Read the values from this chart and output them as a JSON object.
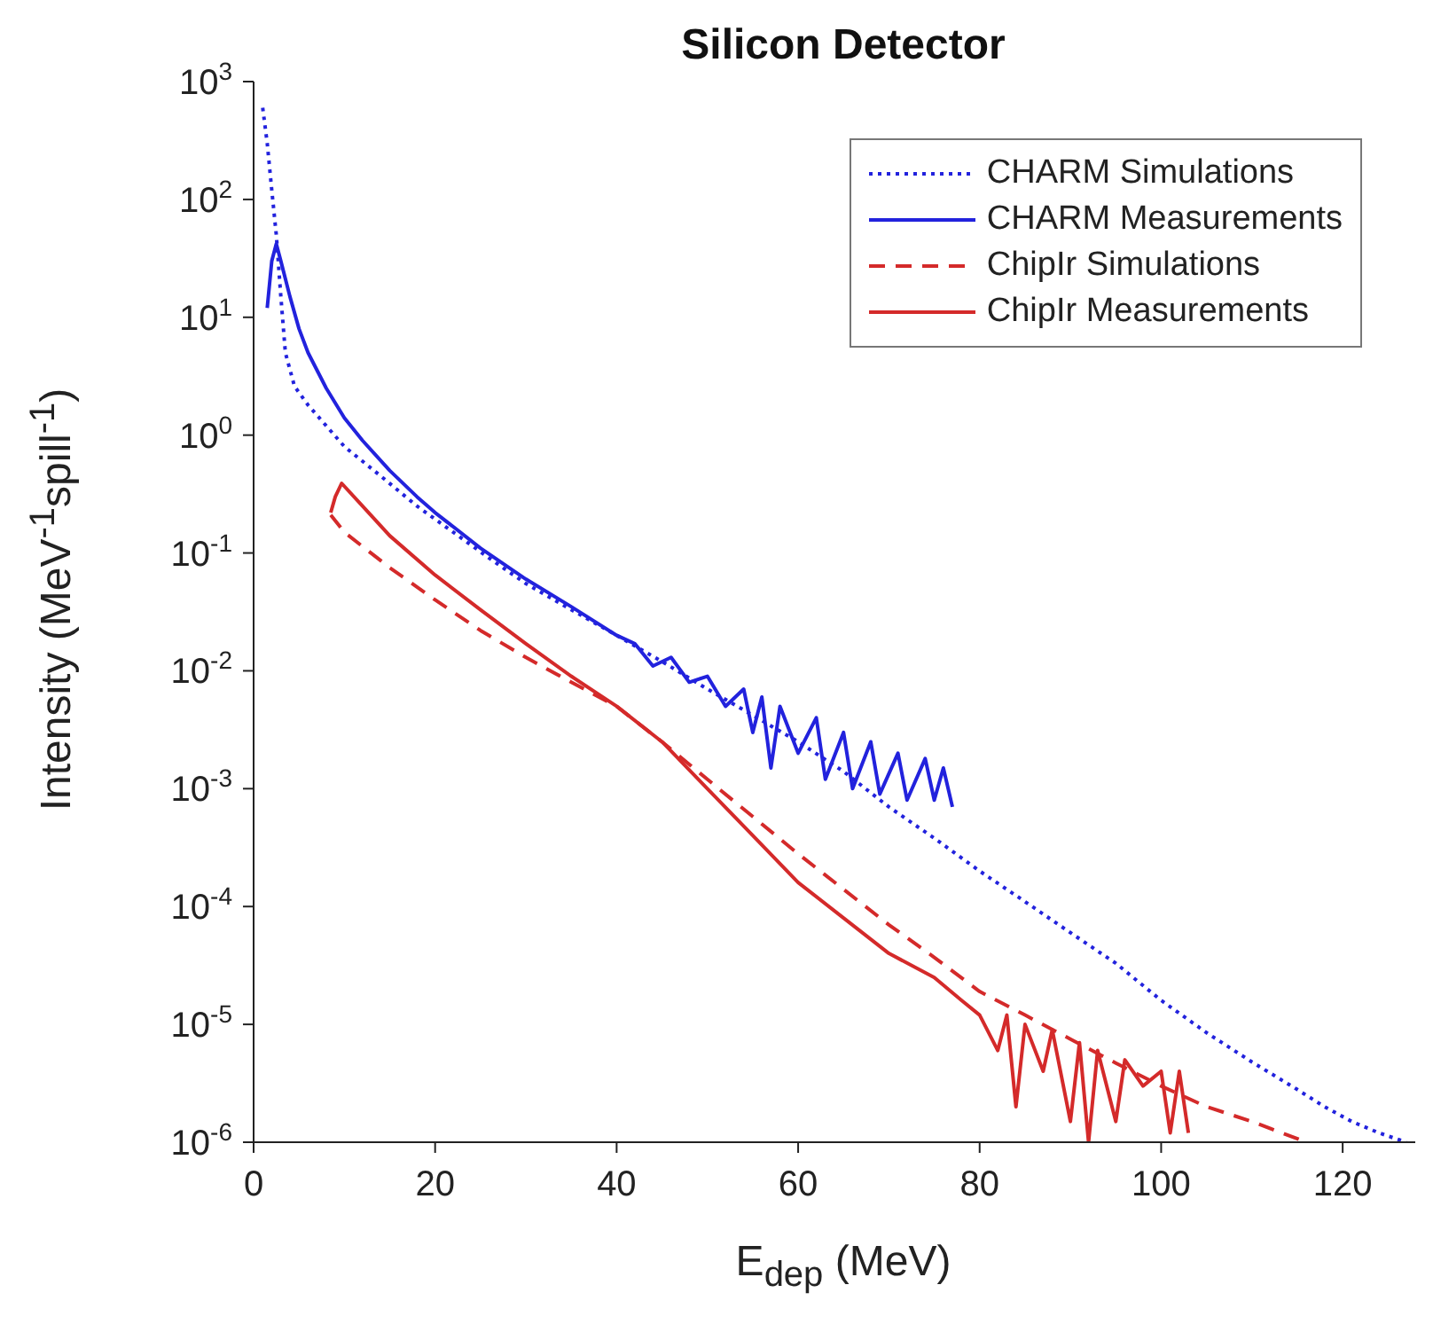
{
  "chart_data": {
    "type": "line",
    "title": "Silicon Detector",
    "xlabel": "E$_{dep}$ (MeV)",
    "ylabel": "Intensity (MeV$^{-1}$spill$^{-1}$)",
    "log": "y",
    "grid": false,
    "legend": "top right",
    "marker": "none",
    "xlim": [
      0,
      128
    ],
    "xticks": [
      0,
      20,
      40,
      60,
      80,
      100,
      120
    ],
    "ylim": [
      1e-06,
      1000
    ],
    "yticks": [
      {
        "value": 1000,
        "label": "10$^{3}$"
      },
      {
        "value": 100,
        "label": "10$^{2}$"
      },
      {
        "value": 10,
        "label": "10$^{1}$"
      },
      {
        "value": 1,
        "label": "10$^{0}$"
      },
      {
        "value": 0.1,
        "label": "10$^{-1}$"
      },
      {
        "value": 0.01,
        "label": "10$^{-2}$"
      },
      {
        "value": 0.001,
        "label": "10$^{-3}$"
      },
      {
        "value": 0.0001,
        "label": "10$^{-4}$"
      },
      {
        "value": 1e-05,
        "label": "10$^{-5}$"
      },
      {
        "value": 1e-06,
        "label": "10$^{-6}$"
      }
    ],
    "series": [
      {
        "name": "CHARM Simulations",
        "color": "#2222dd",
        "line_style": "dotted",
        "x": [
          1,
          1.5,
          2,
          2.5,
          3,
          3.5,
          4.5,
          6,
          8,
          10,
          14,
          18,
          22,
          26,
          30,
          35,
          40,
          45,
          50,
          55,
          60,
          65,
          70,
          75,
          80,
          85,
          90,
          95,
          100,
          105,
          110,
          115,
          118,
          121,
          124,
          127
        ],
        "values": [
          600,
          300,
          120,
          50,
          15,
          5,
          2.6,
          1.8,
          1.2,
          0.8,
          0.45,
          0.25,
          0.15,
          0.09,
          0.055,
          0.033,
          0.02,
          0.012,
          0.007,
          0.0042,
          0.0025,
          0.0014,
          0.0007,
          0.00038,
          0.0002,
          0.00011,
          6e-05,
          3.3e-05,
          1.6e-05,
          8.5e-06,
          4.8e-06,
          2.8e-06,
          2e-06,
          1.5e-06,
          1.2e-06,
          1e-06
        ]
      },
      {
        "name": "CHARM Measurements",
        "color": "#2222dd",
        "line_style": "solid",
        "x": [
          1.5,
          2,
          2.5,
          3,
          4,
          5,
          6,
          8,
          10,
          12,
          15,
          18,
          20,
          25,
          30,
          35,
          40,
          42,
          44,
          46,
          48,
          50,
          52,
          54,
          55,
          56,
          57,
          58,
          60,
          62,
          63,
          65,
          66,
          68,
          69,
          71,
          72,
          74,
          75,
          76,
          77
        ],
        "values": [
          12,
          30,
          42,
          30,
          15,
          8,
          5,
          2.5,
          1.4,
          0.9,
          0.5,
          0.3,
          0.22,
          0.11,
          0.06,
          0.035,
          0.02,
          0.017,
          0.011,
          0.013,
          0.008,
          0.009,
          0.005,
          0.007,
          0.003,
          0.006,
          0.0015,
          0.005,
          0.002,
          0.004,
          0.0012,
          0.003,
          0.001,
          0.0025,
          0.0009,
          0.002,
          0.0008,
          0.0018,
          0.0008,
          0.0015,
          0.0007
        ]
      },
      {
        "name": "ChipIr Simulations",
        "color": "#d42a2a",
        "line_style": "dashed",
        "x": [
          8.5,
          10,
          15,
          20,
          25,
          30,
          35,
          40,
          45,
          50,
          55,
          60,
          65,
          70,
          75,
          80,
          85,
          90,
          95,
          100,
          105,
          110,
          116
        ],
        "values": [
          0.21,
          0.15,
          0.075,
          0.04,
          0.022,
          0.013,
          0.008,
          0.005,
          0.0025,
          0.0012,
          0.00058,
          0.00028,
          0.00014,
          7e-05,
          3.7e-05,
          1.9e-05,
          1.2e-05,
          7.5e-06,
          4.7e-06,
          3e-06,
          2e-06,
          1.5e-06,
          1e-06
        ]
      },
      {
        "name": "ChipIr Measurements",
        "color": "#d42a2a",
        "line_style": "solid",
        "x": [
          8.5,
          9,
          9.7,
          12,
          15,
          20,
          25,
          30,
          35,
          40,
          45,
          50,
          55,
          60,
          65,
          70,
          75,
          78,
          80,
          82,
          83,
          84,
          85,
          87,
          88,
          90,
          91,
          92,
          93,
          95,
          96,
          98,
          100,
          101,
          102,
          103
        ],
        "values": [
          0.22,
          0.3,
          0.39,
          0.25,
          0.14,
          0.065,
          0.033,
          0.017,
          0.009,
          0.005,
          0.0025,
          0.001,
          0.0004,
          0.00016,
          8e-05,
          4e-05,
          2.5e-05,
          1.6e-05,
          1.2e-05,
          6e-06,
          1.2e-05,
          2e-06,
          1e-05,
          4e-06,
          9e-06,
          1.5e-06,
          7e-06,
          1e-06,
          6e-06,
          1.5e-06,
          5e-06,
          3e-06,
          4e-06,
          1.2e-06,
          4e-06,
          1.2e-06
        ]
      }
    ]
  }
}
